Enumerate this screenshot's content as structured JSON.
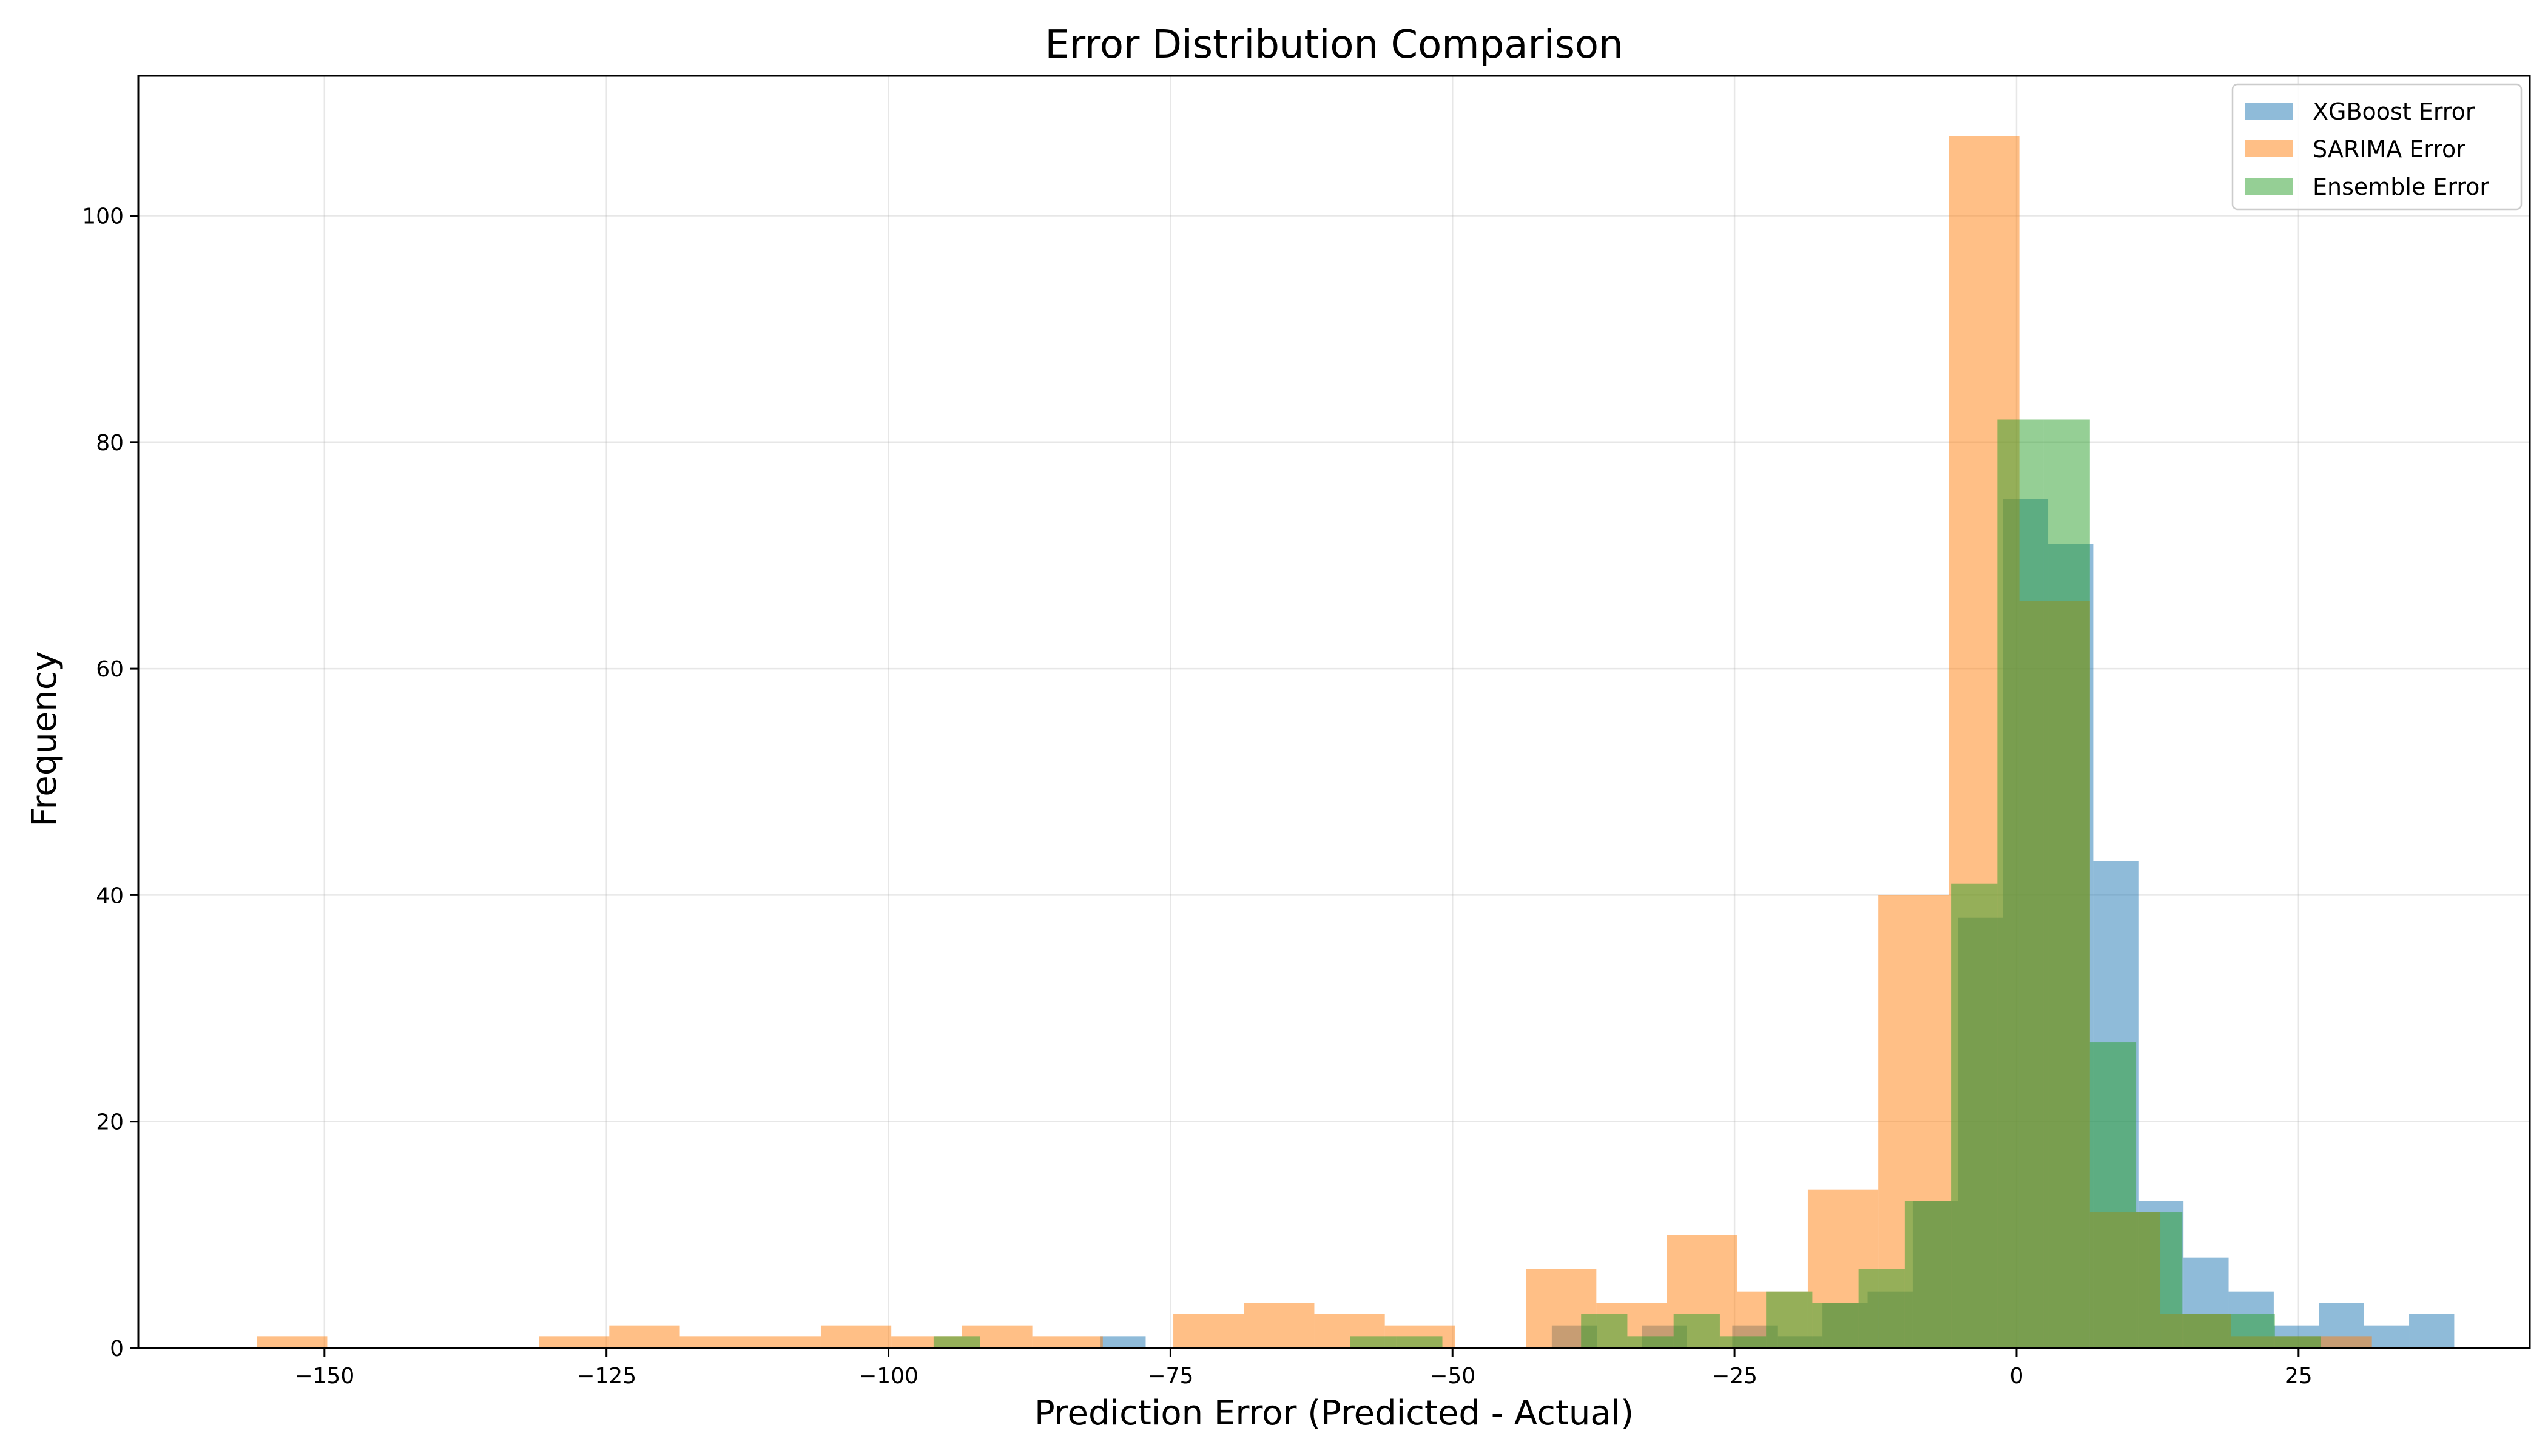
{
  "chart_data": {
    "type": "bar",
    "title": "Error Distribution Comparison",
    "xlabel": "Prediction Error (Predicted - Actual)",
    "ylabel": "Frequency",
    "xlim": [
      -166.5,
      45.5
    ],
    "ylim": [
      0,
      112.35
    ],
    "xticks": [
      -150,
      -125,
      -100,
      -75,
      -50,
      -25,
      0,
      25
    ],
    "xtick_labels": [
      "−150",
      "−125",
      "−100",
      "−75",
      "−50",
      "−25",
      "0",
      "25"
    ],
    "yticks": [
      0,
      20,
      40,
      60,
      80,
      100
    ],
    "ytick_labels": [
      "0",
      "20",
      "40",
      "60",
      "80",
      "100"
    ],
    "grid": true,
    "legend_position": "top-right",
    "series": [
      {
        "name": "XGBoost Error",
        "color": "#1f77b4",
        "alpha": 0.5,
        "bins": [
          {
            "x0": -81.2,
            "x1": -77.2,
            "count": 1
          },
          {
            "x0": -41.2,
            "x1": -37.2,
            "count": 2
          },
          {
            "x0": -33.2,
            "x1": -29.2,
            "count": 2
          },
          {
            "x0": -25.2,
            "x1": -21.2,
            "count": 2
          },
          {
            "x0": -21.2,
            "x1": -17.2,
            "count": 1
          },
          {
            "x0": -17.2,
            "x1": -13.2,
            "count": 4
          },
          {
            "x0": -13.2,
            "x1": -9.2,
            "count": 5
          },
          {
            "x0": -9.2,
            "x1": -5.2,
            "count": 13
          },
          {
            "x0": -5.2,
            "x1": -1.2,
            "count": 38
          },
          {
            "x0": -1.2,
            "x1": 2.8,
            "count": 75
          },
          {
            "x0": 2.8,
            "x1": 6.8,
            "count": 71
          },
          {
            "x0": 6.8,
            "x1": 10.8,
            "count": 43
          },
          {
            "x0": 10.8,
            "x1": 14.8,
            "count": 13
          },
          {
            "x0": 14.8,
            "x1": 18.8,
            "count": 8
          },
          {
            "x0": 18.8,
            "x1": 22.8,
            "count": 5
          },
          {
            "x0": 22.8,
            "x1": 26.8,
            "count": 2
          },
          {
            "x0": 26.8,
            "x1": 30.8,
            "count": 4
          },
          {
            "x0": 30.8,
            "x1": 34.8,
            "count": 2
          },
          {
            "x0": 34.8,
            "x1": 38.8,
            "count": 3
          }
        ]
      },
      {
        "name": "SARIMA Error",
        "color": "#ff7f0e",
        "alpha": 0.5,
        "bins": [
          {
            "x0": -156.0,
            "x1": -149.75,
            "count": 1
          },
          {
            "x0": -131.0,
            "x1": -124.75,
            "count": 1
          },
          {
            "x0": -124.75,
            "x1": -118.5,
            "count": 2
          },
          {
            "x0": -118.5,
            "x1": -112.25,
            "count": 1
          },
          {
            "x0": -112.25,
            "x1": -106.0,
            "count": 1
          },
          {
            "x0": -106.0,
            "x1": -99.75,
            "count": 2
          },
          {
            "x0": -99.75,
            "x1": -93.5,
            "count": 1
          },
          {
            "x0": -93.5,
            "x1": -87.25,
            "count": 2
          },
          {
            "x0": -87.25,
            "x1": -81.0,
            "count": 1
          },
          {
            "x0": -74.75,
            "x1": -68.5,
            "count": 3
          },
          {
            "x0": -68.5,
            "x1": -62.25,
            "count": 4
          },
          {
            "x0": -62.25,
            "x1": -56.0,
            "count": 3
          },
          {
            "x0": -56.0,
            "x1": -49.75,
            "count": 2
          },
          {
            "x0": -43.5,
            "x1": -37.25,
            "count": 7
          },
          {
            "x0": -37.25,
            "x1": -31.0,
            "count": 4
          },
          {
            "x0": -31.0,
            "x1": -24.75,
            "count": 10
          },
          {
            "x0": -24.75,
            "x1": -18.5,
            "count": 5
          },
          {
            "x0": -18.5,
            "x1": -12.25,
            "count": 14
          },
          {
            "x0": -12.25,
            "x1": -6.0,
            "count": 40
          },
          {
            "x0": -6.0,
            "x1": 0.25,
            "count": 107
          },
          {
            "x0": 0.25,
            "x1": 6.5,
            "count": 66
          },
          {
            "x0": 6.5,
            "x1": 12.75,
            "count": 12
          },
          {
            "x0": 12.75,
            "x1": 19.0,
            "count": 3
          },
          {
            "x0": 19.0,
            "x1": 25.25,
            "count": 1
          },
          {
            "x0": 25.25,
            "x1": 31.5,
            "count": 1
          }
        ]
      },
      {
        "name": "Ensemble Error",
        "color": "#2ca02c",
        "alpha": 0.5,
        "bins": [
          {
            "x0": -96.0,
            "x1": -91.9,
            "count": 1
          },
          {
            "x0": -59.1,
            "x1": -55.0,
            "count": 1
          },
          {
            "x0": -55.0,
            "x1": -50.9,
            "count": 1
          },
          {
            "x0": -38.6,
            "x1": -34.5,
            "count": 3
          },
          {
            "x0": -34.5,
            "x1": -30.4,
            "count": 1
          },
          {
            "x0": -30.4,
            "x1": -26.3,
            "count": 3
          },
          {
            "x0": -26.3,
            "x1": -22.2,
            "count": 1
          },
          {
            "x0": -22.2,
            "x1": -18.1,
            "count": 5
          },
          {
            "x0": -18.1,
            "x1": -14.0,
            "count": 4
          },
          {
            "x0": -14.0,
            "x1": -9.9,
            "count": 7
          },
          {
            "x0": -9.9,
            "x1": -5.8,
            "count": 13
          },
          {
            "x0": -5.8,
            "x1": -1.7,
            "count": 41
          },
          {
            "x0": -1.7,
            "x1": 2.4,
            "count": 82
          },
          {
            "x0": 2.4,
            "x1": 6.5,
            "count": 82
          },
          {
            "x0": 6.5,
            "x1": 10.6,
            "count": 27
          },
          {
            "x0": 10.6,
            "x1": 14.7,
            "count": 12
          },
          {
            "x0": 14.7,
            "x1": 18.8,
            "count": 3
          },
          {
            "x0": 18.8,
            "x1": 22.9,
            "count": 3
          },
          {
            "x0": 22.9,
            "x1": 27.0,
            "count": 1
          }
        ]
      }
    ]
  }
}
